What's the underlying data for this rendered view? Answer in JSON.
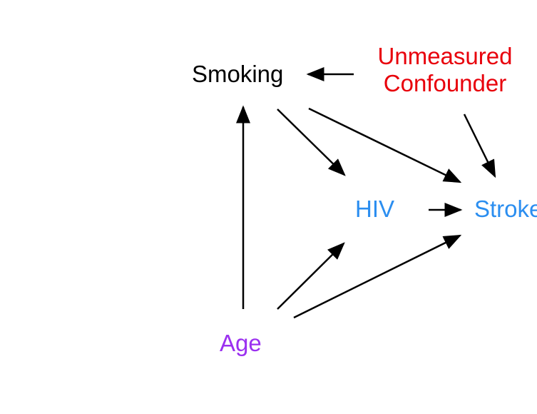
{
  "diagram": {
    "nodes": {
      "smoking": {
        "label": "Smoking",
        "color": "#000000"
      },
      "unmeasured": {
        "line1": "Unmeasured",
        "line2": "Confounder",
        "color": "#e8000b"
      },
      "hiv": {
        "label": "HIV",
        "color": "#2b8ef0"
      },
      "stroke": {
        "label": "Stroke",
        "color": "#2b8ef0"
      },
      "age": {
        "label": "Age",
        "color": "#9b30f0"
      }
    },
    "edges": [
      {
        "from": "Unmeasured Confounder",
        "to": "Smoking"
      },
      {
        "from": "Unmeasured Confounder",
        "to": "Stroke"
      },
      {
        "from": "Smoking",
        "to": "HIV"
      },
      {
        "from": "Smoking",
        "to": "Stroke"
      },
      {
        "from": "Age",
        "to": "Smoking"
      },
      {
        "from": "Age",
        "to": "HIV"
      },
      {
        "from": "Age",
        "to": "Stroke"
      },
      {
        "from": "HIV",
        "to": "Stroke"
      }
    ]
  }
}
